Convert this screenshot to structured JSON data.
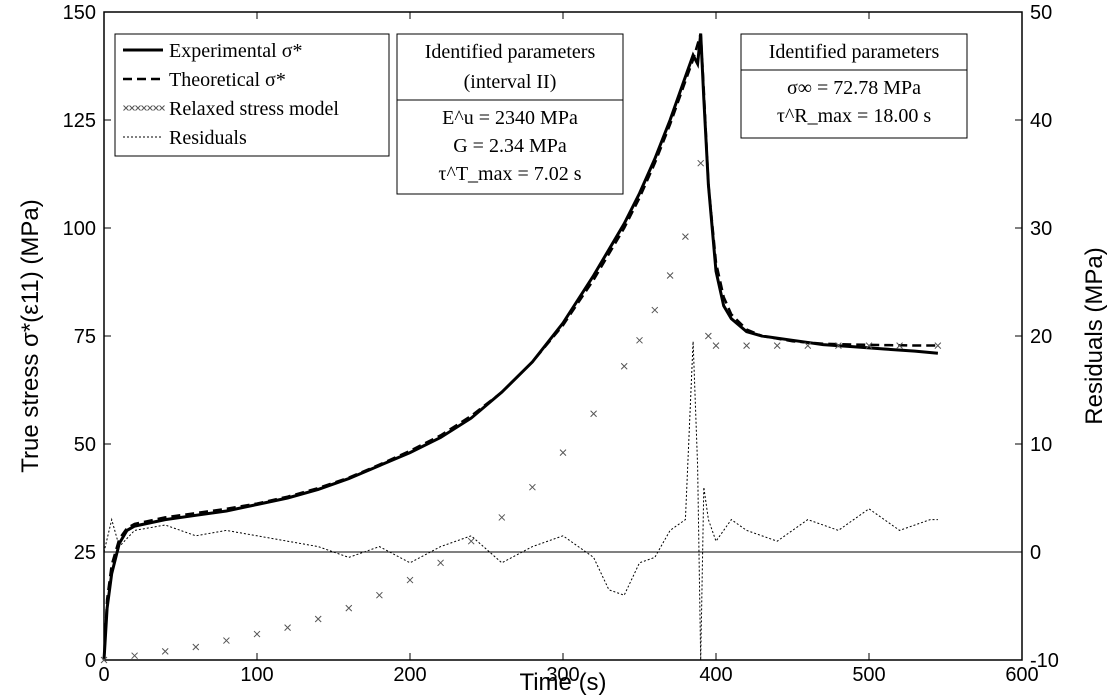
{
  "chart_data": {
    "type": "line",
    "xlabel": "Time (s)",
    "ylabel": "True stress σ*(ε11) (MPa)",
    "y2label": "Residuals (MPa)",
    "xlim": [
      0,
      600
    ],
    "ylim": [
      0,
      150
    ],
    "y2lim": [
      -10,
      50
    ],
    "x_ticks": [
      0,
      100,
      200,
      300,
      400,
      500,
      600
    ],
    "y_ticks": [
      0,
      25,
      50,
      75,
      100,
      125,
      150
    ],
    "y2_ticks": [
      -10,
      0,
      10,
      20,
      30,
      40,
      50
    ],
    "grid": false,
    "legend_position": "top-left",
    "legend": [
      {
        "label": "Experimental σ*",
        "style": "solid-thick"
      },
      {
        "label": "Theoretical σ*",
        "style": "dashed"
      },
      {
        "label": "Relaxed stress model",
        "style": "x-markers"
      },
      {
        "label": "Residuals",
        "style": "dotted"
      }
    ],
    "annotations": [
      {
        "id": "params-interval-2",
        "lines": [
          "Identified parameters",
          "(interval II)",
          "E^u = 2340 MPa",
          "G = 2.34 MPa",
          "τ^T_max = 7.02 s"
        ]
      },
      {
        "id": "params-relaxation",
        "lines": [
          "Identified parameters",
          "σ∞ = 72.78 MPa",
          "τ^R_max = 18.00 s"
        ]
      }
    ],
    "reference_line_residual_zero": 0,
    "series": [
      {
        "name": "Experimental σ*",
        "axis": "left",
        "x": [
          0,
          2,
          5,
          10,
          15,
          20,
          40,
          60,
          80,
          100,
          120,
          140,
          160,
          180,
          200,
          220,
          240,
          260,
          280,
          300,
          320,
          340,
          350,
          360,
          370,
          380,
          385,
          388,
          390,
          392,
          395,
          400,
          405,
          410,
          420,
          430,
          450,
          470,
          490,
          510,
          530,
          545
        ],
        "y": [
          0,
          12,
          20,
          27,
          30,
          31,
          32.5,
          33.5,
          34.5,
          36,
          37.5,
          39.5,
          42,
          45,
          48,
          51.5,
          56,
          62,
          69,
          78,
          89,
          101,
          108,
          116,
          125,
          135,
          140,
          138,
          145,
          130,
          110,
          90,
          82,
          79,
          76,
          75,
          74,
          73,
          72.5,
          72,
          71.5,
          71
        ]
      },
      {
        "name": "Theoretical σ*",
        "axis": "left",
        "x": [
          0,
          2,
          5,
          10,
          15,
          20,
          40,
          60,
          80,
          100,
          120,
          140,
          160,
          180,
          200,
          220,
          240,
          260,
          280,
          300,
          320,
          340,
          350,
          360,
          370,
          380,
          385,
          390,
          392,
          395,
          400,
          405,
          410,
          420,
          430,
          450,
          470,
          490,
          510,
          530,
          545
        ],
        "y": [
          0,
          14,
          22,
          28,
          30.5,
          31.5,
          33,
          34,
          35,
          36.2,
          37.8,
          39.8,
          42.2,
          45.2,
          48.4,
          52,
          56.5,
          62,
          69,
          77.5,
          88,
          100,
          107,
          115,
          124,
          134,
          139,
          145,
          132,
          110,
          92,
          84,
          80,
          76.5,
          75,
          73.8,
          73.2,
          73,
          72.9,
          72.8,
          72.8
        ]
      },
      {
        "name": "Relaxed stress model",
        "axis": "left",
        "x": [
          0,
          20,
          40,
          60,
          80,
          100,
          120,
          140,
          160,
          180,
          200,
          220,
          240,
          260,
          280,
          300,
          320,
          340,
          350,
          360,
          370,
          380,
          390,
          395,
          400,
          420,
          440,
          460,
          480,
          500,
          520,
          545
        ],
        "y": [
          0,
          1,
          2,
          3,
          4.5,
          6,
          7.5,
          9.5,
          12,
          15,
          18.5,
          22.5,
          27.5,
          33,
          40,
          48,
          57,
          68,
          74,
          81,
          89,
          98,
          115,
          75,
          72.78,
          72.78,
          72.78,
          72.78,
          72.78,
          72.78,
          72.78,
          72.78
        ]
      },
      {
        "name": "Residuals",
        "axis": "right",
        "x": [
          0,
          5,
          10,
          20,
          40,
          60,
          80,
          100,
          120,
          140,
          160,
          180,
          200,
          220,
          240,
          260,
          280,
          300,
          320,
          330,
          340,
          350,
          360,
          370,
          380,
          385,
          388,
          390,
          392,
          395,
          400,
          410,
          420,
          440,
          460,
          480,
          500,
          520,
          540,
          545
        ],
        "y": [
          0,
          3,
          0.5,
          2,
          2.5,
          1.5,
          2,
          1.5,
          1,
          0.5,
          -0.5,
          0.5,
          -1,
          0.5,
          1.5,
          -1,
          0.5,
          1.5,
          -0.5,
          -3.5,
          -4,
          -1,
          -0.5,
          2,
          3,
          19.5,
          8,
          -10,
          6,
          3,
          1,
          3,
          2,
          1,
          3,
          2,
          4,
          2,
          3,
          3
        ]
      }
    ]
  }
}
